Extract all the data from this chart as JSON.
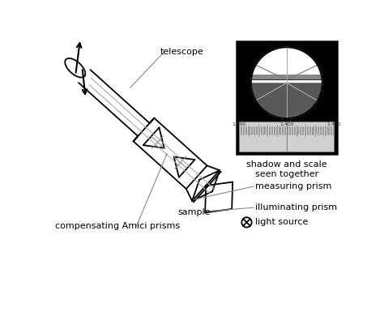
{
  "bg_color": "#ffffff",
  "line_color": "#000000",
  "telescope_label": "telescope",
  "amici_label": "compensating Amici prisms",
  "sample_label": "sample",
  "measuring_label": "measuring prism",
  "illuminating_label": "illuminating prism",
  "light_label": "light source",
  "shadow_label": "shadow and scale\nseen together",
  "scale_ticks": [
    "1.390",
    "1.400",
    "1.410"
  ],
  "inset_black": "#000000",
  "circle_upper": "#ffffff",
  "circle_lower": "#606060",
  "circle_dark": "#404040",
  "scale_bg": "#d8d8d8",
  "tick_color": "#888888",
  "crosshair_color": "#aaaaaa"
}
